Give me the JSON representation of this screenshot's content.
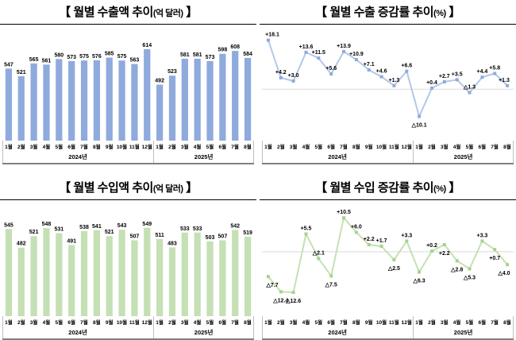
{
  "page": {
    "background": "#ffffff"
  },
  "styles": {
    "title_rule_color": "#000000",
    "axis_separator_color": "#bfbfbf",
    "bottom_border_color": "#808080",
    "zero_line_color": "#d9d9d9",
    "data_label_color": "#000000"
  },
  "chart_data": [
    {
      "id": "export-amount",
      "type": "bar",
      "title": {
        "prefix": "【 월별 수출액 추이",
        "unit": "(억 달러)",
        "suffix": " 】"
      },
      "categories": [
        "1월",
        "2월",
        "3월",
        "4월",
        "5월",
        "6월",
        "7월",
        "8월",
        "9월",
        "10월",
        "11월",
        "12월",
        "1월",
        "2월",
        "3월",
        "4월",
        "5월",
        "6월",
        "7월",
        "8월"
      ],
      "year_groups": [
        {
          "label": "2024년",
          "count": 12
        },
        {
          "label": "2025년",
          "count": 8
        }
      ],
      "values": [
        547,
        521,
        565,
        561,
        580,
        573,
        575,
        576,
        585,
        575,
        563,
        614,
        492,
        523,
        581,
        581,
        573,
        598,
        608,
        584
      ],
      "value_labels": [
        "547",
        "521",
        "565",
        "561",
        "580",
        "573",
        "575",
        "576",
        "585",
        "575",
        "563",
        "614",
        "492",
        "523",
        "581",
        "581",
        "573",
        "598",
        "608",
        "584"
      ],
      "bar_color": "#8faadc",
      "ylim": [
        300,
        660
      ],
      "grid": false,
      "legend": "none"
    },
    {
      "id": "export-growth",
      "type": "line",
      "title": {
        "prefix": "【 월별 수출 증감률 추이",
        "unit": "(%)",
        "suffix": " 】"
      },
      "categories": [
        "1월",
        "2월",
        "3월",
        "4월",
        "5월",
        "6월",
        "7월",
        "8월",
        "9월",
        "10월",
        "11월",
        "12월",
        "1월",
        "2월",
        "3월",
        "4월",
        "5월",
        "6월",
        "7월",
        "8월"
      ],
      "year_groups": [
        {
          "label": "2024년",
          "count": 12
        },
        {
          "label": "2025년",
          "count": 8
        }
      ],
      "values": [
        18.1,
        4.2,
        3.0,
        13.6,
        11.5,
        5.6,
        13.9,
        10.9,
        7.1,
        4.6,
        1.3,
        6.6,
        -10.1,
        0.4,
        2.7,
        3.5,
        -1.3,
        4.4,
        5.8,
        1.3
      ],
      "value_labels": [
        "+18.1",
        "+4.2",
        "+3.0",
        "+13.6",
        "+11.5",
        "+5.6",
        "+13.9",
        "+10.9",
        "+7.1",
        "+4.6",
        "+1.3",
        "+6.6",
        "△10.1",
        "+0.4",
        "+2.7",
        "+3.5",
        "△1.3",
        "+4.4",
        "+5.8",
        "+1.3"
      ],
      "label_sides": [
        "above",
        "above",
        "above",
        "above",
        "above",
        "above",
        "above",
        "above",
        "above",
        "above",
        "above",
        "above",
        "below",
        "above",
        "above",
        "above",
        "above",
        "above",
        "above",
        "above"
      ],
      "line_color": "#b4c7e7",
      "marker_color": "#8faadc",
      "ylim": [
        -15.5,
        21.5
      ],
      "zero_line": true,
      "grid": false,
      "legend": "none"
    },
    {
      "id": "import-amount",
      "type": "bar",
      "title": {
        "prefix": "【 월별 수입액 추이",
        "unit": "(억 달러)",
        "suffix": " 】"
      },
      "categories": [
        "1월",
        "2월",
        "3월",
        "4월",
        "5월",
        "6월",
        "7월",
        "8월",
        "9월",
        "10월",
        "11월",
        "12월",
        "1월",
        "2월",
        "3월",
        "4월",
        "5월",
        "6월",
        "7월",
        "8월"
      ],
      "year_groups": [
        {
          "label": "2024년",
          "count": 12
        },
        {
          "label": "2025년",
          "count": 8
        }
      ],
      "values": [
        545,
        482,
        521,
        548,
        531,
        491,
        538,
        541,
        521,
        543,
        507,
        549,
        511,
        483,
        533,
        533,
        503,
        507,
        542,
        519
      ],
      "value_labels": [
        "545",
        "482",
        "521",
        "548",
        "531",
        "491",
        "538",
        "541",
        "521",
        "543",
        "507",
        "549",
        "511",
        "483",
        "533",
        "533",
        "503",
        "507",
        "542",
        "519"
      ],
      "bar_color": "#c5e0b4",
      "ylim": [
        250,
        605
      ],
      "grid": false,
      "legend": "none"
    },
    {
      "id": "import-growth",
      "type": "line",
      "title": {
        "prefix": "【 월별 수입 증감률 추이",
        "unit": "(%)",
        "suffix": " 】"
      },
      "categories": [
        "1월",
        "2월",
        "3월",
        "4월",
        "5월",
        "6월",
        "7월",
        "8월",
        "9월",
        "10월",
        "11월",
        "12월",
        "1월",
        "2월",
        "3월",
        "4월",
        "5월",
        "6월",
        "7월",
        "8월"
      ],
      "year_groups": [
        {
          "label": "2024년",
          "count": 12
        },
        {
          "label": "2025년",
          "count": 8
        }
      ],
      "values": [
        -7.7,
        -12.4,
        -12.6,
        5.5,
        -2.1,
        -7.5,
        10.5,
        6.0,
        2.2,
        1.7,
        -2.5,
        3.3,
        -6.3,
        0.2,
        2.2,
        -2.8,
        -5.3,
        3.3,
        0.7,
        -4.0
      ],
      "value_labels": [
        "△7.7",
        "△12.4",
        "△12.6",
        "+5.5",
        "△2.1",
        "△7.5",
        "+10.5",
        "+6.0",
        "+2.2",
        "+1.7",
        "△2.5",
        "+3.3",
        "△6.3",
        "+0.2",
        "+2.2",
        "△2.8",
        "△5.3",
        "+3.3",
        "+0.7",
        "△4.0"
      ],
      "label_sides": [
        "below",
        "below",
        "below",
        "above",
        "above",
        "below",
        "above",
        "above",
        "above",
        "above",
        "below",
        "above",
        "below",
        "above",
        "below",
        "below",
        "below",
        "above",
        "below",
        "below"
      ],
      "line_color": "#c5e0b4",
      "marker_color": "#a9d18e",
      "ylim": [
        -17,
        14
      ],
      "zero_line": true,
      "grid": false,
      "legend": "none"
    }
  ]
}
